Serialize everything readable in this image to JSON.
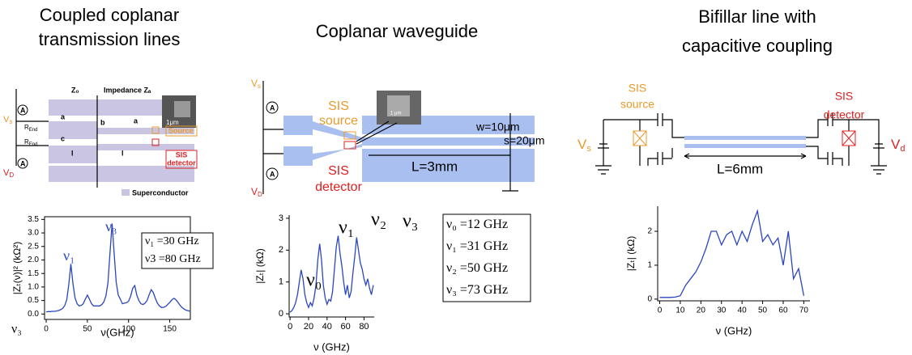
{
  "panels": [
    {
      "title": [
        "Coupled coplanar",
        "transmission lines"
      ],
      "diagram": {
        "z0": "Z₀",
        "za": "Impedance Zₐ",
        "vs": {
          "text": "V",
          "sub": "s"
        },
        "vd": {
          "text": "V",
          "sub": "D"
        },
        "ammeter": [
          "A",
          "A"
        ],
        "rend": [
          {
            "text": "R",
            "sub": "End"
          },
          {
            "text": "R",
            "sub": "End"
          }
        ],
        "dims": [
          "a",
          "b",
          "c",
          "a",
          "l",
          "l"
        ],
        "scale": "1μm",
        "source": "Source",
        "detector": [
          "SIS",
          "detector"
        ],
        "legend": "Superconductor"
      }
    },
    {
      "title": [
        "Coplanar waveguide"
      ],
      "diagram": {
        "vs": {
          "text": "V",
          "sub": "s"
        },
        "vd": {
          "text": "V",
          "sub": "D"
        },
        "ammeter": [
          "A",
          "A"
        ],
        "source": [
          "SIS",
          "source"
        ],
        "detector": [
          "SIS",
          "detector"
        ],
        "scale": "1 μm",
        "w": "w=10μm",
        "s": "s=20μm",
        "length": "L=3mm"
      }
    },
    {
      "title": [
        "Bifillar line with",
        "capacitive coupling"
      ],
      "diagram": {
        "source": [
          "SIS",
          "source"
        ],
        "detector": [
          "SIS",
          "detector"
        ],
        "vs": {
          "text": "V",
          "sub": "s"
        },
        "vd": {
          "text": "V",
          "sub": "d"
        },
        "length": "L=6mm"
      }
    }
  ],
  "chart_data": [
    {
      "type": "line",
      "color": "#2a46c0",
      "xlabel": "ν(GHz)",
      "ylabel": "|Zₜ(ν)|² (kΩ²)",
      "x": [
        0,
        2.5,
        5,
        7.5,
        10,
        12.5,
        15,
        17.5,
        20,
        22.5,
        25,
        27.5,
        30,
        32.5,
        35,
        37.5,
        40,
        42.5,
        45,
        47.5,
        50,
        52.5,
        55,
        57.5,
        60,
        62.5,
        65,
        67.5,
        70,
        72.5,
        75,
        77.5,
        80,
        82.5,
        85,
        87.5,
        90,
        92.5,
        95,
        97.5,
        100,
        102.5,
        105,
        107.5,
        110,
        112.5,
        115,
        117.5,
        120,
        122.5,
        125,
        127.5,
        130,
        132.5,
        135,
        137.5,
        140,
        142.5,
        145,
        147.5,
        150,
        152.5,
        155,
        157.5,
        160,
        162.5,
        165,
        167.5,
        170,
        172.5,
        175
      ],
      "values": [
        0.08,
        0.09,
        0.09,
        0.1,
        0.1,
        0.11,
        0.13,
        0.16,
        0.21,
        0.31,
        0.54,
        1.12,
        1.85,
        1.12,
        0.6,
        0.38,
        0.3,
        0.32,
        0.38,
        0.55,
        0.7,
        0.55,
        0.38,
        0.3,
        0.3,
        0.3,
        0.3,
        0.35,
        0.45,
        0.67,
        1.16,
        2.26,
        3.35,
        2.26,
        1.17,
        0.7,
        0.55,
        0.38,
        0.4,
        0.42,
        0.47,
        0.66,
        0.95,
        1.05,
        0.7,
        0.5,
        0.38,
        0.35,
        0.4,
        0.5,
        0.72,
        0.9,
        0.8,
        0.58,
        0.4,
        0.3,
        0.24,
        0.25,
        0.28,
        0.35,
        0.43,
        0.52,
        0.58,
        0.53,
        0.43,
        0.32,
        0.24,
        0.18,
        0.14,
        0.12,
        0.1
      ],
      "xlim": [
        -2,
        175
      ],
      "ylim": [
        -0.2,
        3.6
      ],
      "xticks": [
        0,
        50,
        100,
        150
      ],
      "yticks": [
        {
          "value": 0,
          "label": "0.0"
        },
        {
          "value": 0.5,
          "label": "0.5"
        },
        {
          "value": 1,
          "label": "1.0"
        },
        {
          "value": 1.5,
          "label": "1.5"
        },
        {
          "value": 2,
          "label": "2.0"
        },
        {
          "value": 2.5,
          "label": "2.5"
        },
        {
          "value": 3,
          "label": "3.0"
        },
        {
          "value": 3.5,
          "label": "3.5"
        }
      ],
      "annotations": [
        "ν₁",
        "ν₃",
        "ν₃"
      ],
      "box": [
        "ν₁ =30 GHz",
        "ν3 =80 GHz"
      ]
    },
    {
      "type": "line",
      "color": "#2a46c0",
      "xlabel": "ν (GHz)",
      "ylabel": "|Zₜ| (kΩ)",
      "x": [
        0,
        2,
        4,
        6,
        8,
        10,
        12,
        14,
        16,
        18,
        20,
        22,
        24,
        26,
        28,
        30,
        32,
        34,
        36,
        38,
        40,
        42,
        44,
        46,
        48,
        50,
        52,
        54,
        56,
        58,
        60,
        62,
        64,
        66,
        68,
        70,
        72,
        74,
        76,
        78,
        80,
        82,
        84,
        86,
        88,
        90
      ],
      "values": [
        0.05,
        0.1,
        0.2,
        0.35,
        0.6,
        1.0,
        1.38,
        1.1,
        0.6,
        0.35,
        0.2,
        0.35,
        0.25,
        0.5,
        0.9,
        1.7,
        2.2,
        1.7,
        0.9,
        0.5,
        0.3,
        0.45,
        0.4,
        0.7,
        1.4,
        2.1,
        2.45,
        1.9,
        1.5,
        1.0,
        0.6,
        0.9,
        0.5,
        0.7,
        1.3,
        1.8,
        2.4,
        2.0,
        1.6,
        1.4,
        1.1,
        0.9,
        1.1,
        0.8,
        0.6,
        0.9
      ],
      "xlim": [
        -1,
        91
      ],
      "ylim": [
        -0.1,
        3.1
      ],
      "xticks": [
        0,
        20,
        40,
        60,
        80
      ],
      "yticks": [
        0,
        1,
        2,
        3
      ],
      "annotations": [
        "ν₀",
        "ν₁",
        "ν₂",
        "ν₃"
      ],
      "box": [
        "ν₀ =12 GHz",
        "ν₁ =31 GHz",
        "ν₂ =50 GHz",
        "ν₃ =73 GHz"
      ]
    },
    {
      "type": "line",
      "color": "#2a46c0",
      "xlabel": "ν (GHz)",
      "ylabel": "|Zₜ| (kΩ)",
      "x": [
        0,
        2.5,
        5,
        7.5,
        10,
        12.5,
        15,
        17.5,
        20,
        22.5,
        25,
        27.5,
        30,
        32.5,
        35,
        37.5,
        40,
        42.5,
        45,
        47.5,
        50,
        52.5,
        55,
        57.5,
        60,
        62.5,
        65,
        67.5,
        70
      ],
      "values": [
        0.05,
        0.05,
        0.05,
        0.06,
        0.1,
        0.4,
        0.6,
        0.8,
        1.1,
        1.5,
        2.0,
        2.0,
        1.6,
        1.9,
        2.0,
        1.6,
        2.0,
        1.7,
        2.2,
        2.6,
        1.7,
        1.9,
        1.6,
        1.8,
        1.0,
        2.0,
        0.6,
        0.9,
        0.1
      ],
      "xlim": [
        -1,
        73
      ],
      "ylim": [
        -0.05,
        2.74
      ],
      "xticks": [
        0,
        10,
        20,
        30,
        40,
        50,
        60,
        70
      ],
      "yticks": [
        0,
        1,
        2
      ],
      "annotations": [],
      "box": []
    }
  ]
}
